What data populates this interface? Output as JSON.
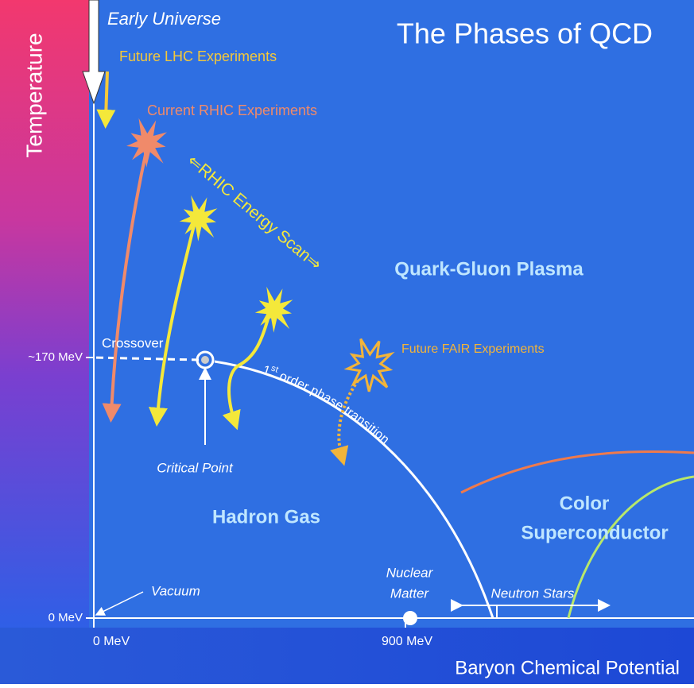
{
  "title": "The Phases of QCD",
  "axes": {
    "y_label": "Temperature",
    "x_label": "Baryon Chemical Potential",
    "y_ticks": [
      "~170 MeV",
      "0 MeV"
    ],
    "x_ticks": [
      "0 MeV",
      "900 MeV"
    ]
  },
  "annotations": {
    "early_universe": "Early Universe",
    "future_lhc": "Future LHC Experiments",
    "current_rhic": "Current RHIC Experiments",
    "energy_scan": "⇐RHIC Energy Scan⇒",
    "future_fair": "Future FAIR Experiments",
    "crossover": "Crossover",
    "critical_point": "Critical Point",
    "first_order": {
      "ordinal": "1",
      "superscript": "st",
      "rest": " order phase transition"
    },
    "vacuum": "Vacuum",
    "nuclear_matter": [
      "Nuclear",
      "Matter"
    ],
    "neutron_stars": "Neutron Stars"
  },
  "regions": {
    "qgp": "Quark-Gluon Plasma",
    "hadron_gas": "Hadron Gas",
    "color_superconductor": [
      "Color",
      "Superconductor"
    ]
  }
}
